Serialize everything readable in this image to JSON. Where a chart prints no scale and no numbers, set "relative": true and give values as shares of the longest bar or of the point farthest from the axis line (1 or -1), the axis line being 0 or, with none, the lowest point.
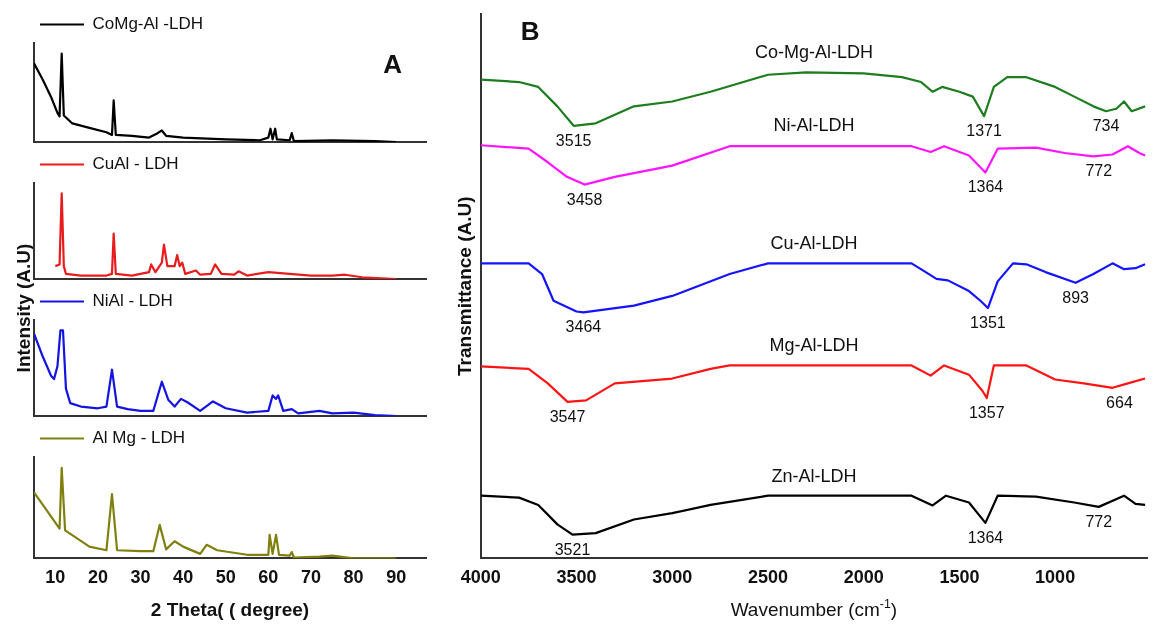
{
  "chart_data": [
    {
      "type": "line",
      "title": "A",
      "relative": true,
      "legend": "top left",
      "tick_labels": false,
      "xlim": [
        5,
        97
      ],
      "xticks": [
        10,
        20,
        30,
        40,
        50,
        60,
        70,
        80,
        90
      ],
      "series": [
        {
          "name": "CoMg-Al -LDH",
          "color": "#000000",
          "x": [
            5,
            7,
            9,
            10.5,
            11,
            11.5,
            12,
            14,
            18,
            22,
            23.3,
            23.7,
            24.2,
            28,
            32,
            34,
            35,
            36,
            40,
            50,
            58,
            60,
            60.5,
            61,
            61.6,
            62,
            65,
            65.5,
            66,
            75,
            85,
            90
          ],
          "values": [
            0.89,
            0.71,
            0.51,
            0.33,
            0.29,
            1,
            0.3,
            0.21,
            0.16,
            0.11,
            0.08,
            0.47,
            0.08,
            0.07,
            0.05,
            0.1,
            0.13,
            0.07,
            0.05,
            0.03,
            0.02,
            0.05,
            0.15,
            0.03,
            0.15,
            0.03,
            0.02,
            0.1,
            0.01,
            0.02,
            0.01,
            0
          ]
        }
      ]
    },
    {
      "type": "line",
      "relative": true,
      "legend": "top left",
      "tick_labels": false,
      "xlim": [
        5,
        97
      ],
      "xticks": [
        10,
        20,
        30,
        40,
        50,
        60,
        70,
        80,
        90
      ],
      "series": [
        {
          "name": "CuAl - LDH",
          "color": "#e81c1c",
          "x": [
            10,
            11,
            11.5,
            12,
            12.5,
            16,
            22,
            23.3,
            23.7,
            24.2,
            28,
            32,
            32.5,
            33.5,
            35,
            35.5,
            36.3,
            38,
            38.6,
            39.2,
            39.8,
            40.5,
            43,
            44,
            46.5,
            47.5,
            49,
            52,
            53,
            55,
            60,
            65,
            70,
            75,
            78,
            82,
            90
          ],
          "values": [
            0.15,
            0.17,
            1,
            0.15,
            0.06,
            0.04,
            0.04,
            0.06,
            0.53,
            0.06,
            0.04,
            0.08,
            0.17,
            0.08,
            0.19,
            0.4,
            0.15,
            0.15,
            0.28,
            0.15,
            0.19,
            0.06,
            0.1,
            0.05,
            0.06,
            0.17,
            0.06,
            0.05,
            0.09,
            0.04,
            0.08,
            0.06,
            0.04,
            0.04,
            0.05,
            0.02,
            0
          ]
        }
      ]
    },
    {
      "type": "line",
      "relative": true,
      "legend": "top left",
      "tick_labels": false,
      "xlim": [
        5,
        97
      ],
      "xticks": [
        10,
        20,
        30,
        40,
        50,
        60,
        70,
        80,
        90
      ],
      "series": [
        {
          "name": "NiAl - LDH",
          "color": "#1414e0",
          "x": [
            5,
            7,
            9,
            9.7,
            10.5,
            11.2,
            11.8,
            12.5,
            13.5,
            16,
            20,
            22,
            23.3,
            24.5,
            27,
            30,
            33,
            35,
            36.5,
            38,
            39.5,
            41,
            44,
            47,
            50,
            55,
            60,
            61,
            61.8,
            62.3,
            63.5,
            65.5,
            67,
            72,
            75,
            80,
            85,
            90
          ],
          "values": [
            0.96,
            0.7,
            0.47,
            0.43,
            0.58,
            1,
            1,
            0.32,
            0.15,
            0.11,
            0.09,
            0.11,
            0.54,
            0.11,
            0.08,
            0.06,
            0.06,
            0.4,
            0.19,
            0.11,
            0.2,
            0.16,
            0.06,
            0.17,
            0.09,
            0.04,
            0.06,
            0.24,
            0.2,
            0.24,
            0.06,
            0.08,
            0.03,
            0.06,
            0.03,
            0.04,
            0.01,
            0
          ]
        }
      ]
    },
    {
      "type": "line",
      "relative": true,
      "legend": "top left",
      "tick_labels": "x",
      "xlabel": "2 Theta( ( degree)",
      "ylabel": "Intensity  (A.U)",
      "xlim": [
        5,
        97
      ],
      "xticks": [
        10,
        20,
        30,
        40,
        50,
        60,
        70,
        80,
        90
      ],
      "series": [
        {
          "name": "Al Mg - LDH",
          "color": "#808010",
          "x": [
            5,
            11,
            11.5,
            12.3,
            18,
            22,
            23.3,
            24.5,
            30,
            33,
            34.5,
            36,
            38,
            40,
            44,
            45.5,
            48,
            55,
            60,
            60.3,
            61,
            61.8,
            62.5,
            65,
            65.5,
            66,
            72,
            75,
            80,
            90
          ],
          "values": [
            0.73,
            0.33,
            1,
            0.31,
            0.13,
            0.09,
            0.71,
            0.09,
            0.08,
            0.08,
            0.37,
            0.1,
            0.19,
            0.13,
            0.05,
            0.15,
            0.09,
            0.04,
            0.04,
            0.26,
            0.05,
            0.26,
            0.04,
            0.03,
            0.07,
            0.01,
            0.02,
            0.03,
            0,
            0
          ]
        }
      ]
    },
    {
      "type": "line",
      "title": "B",
      "relative": true,
      "tick_labels": "x",
      "xlabel": "Wavenumber (cm$^{-1}$)",
      "ylabel": "Transmittance (A.U)",
      "xlim": [
        4000,
        520
      ],
      "xticks": [
        4000,
        3500,
        3000,
        2500,
        2000,
        1500,
        1000
      ],
      "series": [
        {
          "name": "Co-Mg-Al-LDH",
          "color": "#1e7d1e",
          "x": [
            4000,
            3800,
            3700,
            3600,
            3515,
            3400,
            3200,
            3000,
            2800,
            2500,
            2300,
            2000,
            1800,
            1700,
            1640,
            1590,
            1500,
            1430,
            1371,
            1320,
            1250,
            1150,
            1000,
            900,
            800,
            734,
            680,
            640,
            600,
            530
          ],
          "values": [
            0.985,
            0.98,
            0.97,
            0.93,
            0.89,
            0.895,
            0.93,
            0.94,
            0.96,
            0.995,
            1,
            0.998,
            0.99,
            0.98,
            0.96,
            0.97,
            0.96,
            0.95,
            0.91,
            0.97,
            0.99,
            0.99,
            0.97,
            0.95,
            0.93,
            0.92,
            0.925,
            0.94,
            0.92,
            0.93
          ]
        },
        {
          "name": "Ni-Al-LDH",
          "color": "#ff14ff",
          "x": [
            4000,
            3750,
            3650,
            3550,
            3458,
            3300,
            3000,
            2700,
            2000,
            1750,
            1650,
            1580,
            1450,
            1364,
            1300,
            1100,
            950,
            800,
            700,
            620,
            560,
            530
          ],
          "values": [
            0.85,
            0.843,
            0.815,
            0.785,
            0.769,
            0.785,
            0.808,
            0.848,
            0.848,
            0.848,
            0.836,
            0.848,
            0.829,
            0.794,
            0.843,
            0.845,
            0.834,
            0.827,
            0.831,
            0.848,
            0.834,
            0.829
          ]
        },
        {
          "name": "Cu-Al-LDH",
          "color": "#1414ff",
          "x": [
            4000,
            3750,
            3680,
            3620,
            3500,
            3464,
            3200,
            3000,
            2700,
            2500,
            2000,
            1750,
            1680,
            1620,
            1560,
            1450,
            1390,
            1351,
            1300,
            1220,
            1150,
            1050,
            893,
            800,
            700,
            640,
            580,
            530
          ],
          "values": [
            0.607,
            0.607,
            0.585,
            0.53,
            0.508,
            0.506,
            0.52,
            0.54,
            0.585,
            0.607,
            0.607,
            0.607,
            0.59,
            0.575,
            0.572,
            0.55,
            0.53,
            0.515,
            0.57,
            0.607,
            0.605,
            0.589,
            0.567,
            0.585,
            0.607,
            0.595,
            0.597,
            0.605
          ]
        },
        {
          "name": "Mg-Al-LDH",
          "color": "#ff1414",
          "x": [
            4000,
            3750,
            3650,
            3547,
            3450,
            3300,
            3000,
            2800,
            2700,
            2000,
            1750,
            1650,
            1580,
            1450,
            1380,
            1357,
            1320,
            1150,
            1000,
            850,
            700,
            620,
            530
          ],
          "values": [
            0.395,
            0.39,
            0.36,
            0.322,
            0.325,
            0.36,
            0.37,
            0.39,
            0.397,
            0.397,
            0.397,
            0.376,
            0.397,
            0.378,
            0.345,
            0.33,
            0.397,
            0.397,
            0.368,
            0.36,
            0.351,
            0.36,
            0.37
          ]
        },
        {
          "name": "Zn-Al-LDH",
          "color": "#000000",
          "x": [
            4000,
            3800,
            3700,
            3600,
            3521,
            3400,
            3200,
            3000,
            2800,
            2500,
            2000,
            1750,
            1640,
            1570,
            1450,
            1364,
            1300,
            1100,
            900,
            772,
            640,
            580,
            530
          ],
          "values": [
            0.129,
            0.125,
            0.11,
            0.07,
            0.049,
            0.052,
            0.08,
            0.093,
            0.11,
            0.129,
            0.129,
            0.129,
            0.109,
            0.129,
            0.115,
            0.073,
            0.129,
            0.127,
            0.115,
            0.106,
            0.129,
            0.112,
            0.11
          ]
        }
      ],
      "annotations": [
        {
          "text": "3515",
          "x": 3515,
          "y": 0.89
        },
        {
          "text": "1371",
          "x": 1371,
          "y": 0.91
        },
        {
          "text": "734",
          "x": 734,
          "y": 0.92
        },
        {
          "text": "3458",
          "x": 3458,
          "y": 0.769
        },
        {
          "text": "1364",
          "x": 1364,
          "y": 0.794
        },
        {
          "text": "772",
          "x": 772,
          "y": 0.827
        },
        {
          "text": "3464",
          "x": 3464,
          "y": 0.506
        },
        {
          "text": "1351",
          "x": 1351,
          "y": 0.515
        },
        {
          "text": "893",
          "x": 893,
          "y": 0.567
        },
        {
          "text": "3547",
          "x": 3547,
          "y": 0.322
        },
        {
          "text": "1357",
          "x": 1357,
          "y": 0.33
        },
        {
          "text": "664",
          "x": 664,
          "y": 0.351
        },
        {
          "text": "3521",
          "x": 3521,
          "y": 0.049
        },
        {
          "text": "1364",
          "x": 1364,
          "y": 0.073
        },
        {
          "text": "772",
          "x": 772,
          "y": 0.106
        }
      ]
    }
  ]
}
